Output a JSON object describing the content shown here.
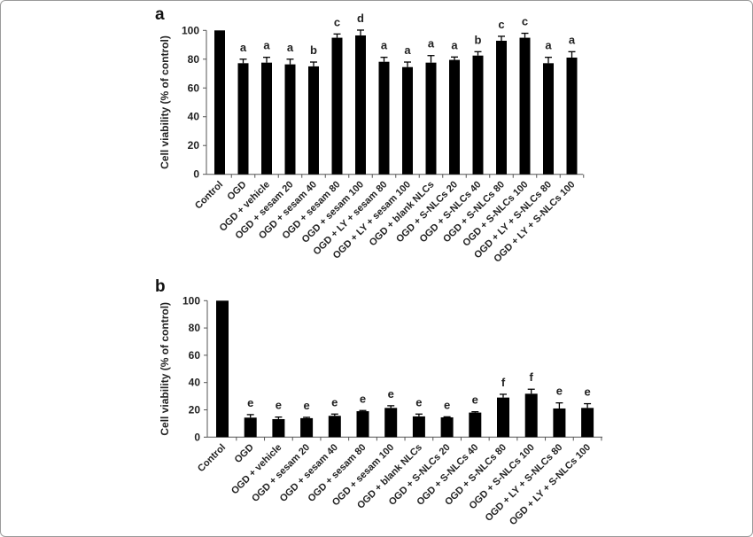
{
  "chart_data": [
    {
      "type": "bar",
      "panel_label": "a",
      "ylabel": "Cell viability (% of control)",
      "xlabel": "",
      "ylim": [
        0,
        100
      ],
      "yticks": [
        0,
        20,
        40,
        60,
        80,
        100
      ],
      "grid": false,
      "bar_color": "#000000",
      "categories": [
        "Control",
        "OGD",
        "OGD + vehicle",
        "OGD + sesam 20",
        "OGD + sesam 40",
        "OGD + sesam 80",
        "OGD + sesam 100",
        "OGD + LY + sesam 80",
        "OGD + LY + sesam 100",
        "OGD + blank NLCs",
        "OGD + S-NLCs 20",
        "OGD + S-NLCs 40",
        "OGD + S-NLCs 80",
        "OGD + S-NLCs 100",
        "OGD + LY + S-NLCs 80",
        "OGD + LY + S-NLCs 100"
      ],
      "values": [
        100,
        77.2,
        77.6,
        76.4,
        75.0,
        94.9,
        96.5,
        78.2,
        74.5,
        77.6,
        79.5,
        82.5,
        92.8,
        94.9,
        77.2,
        81.1
      ],
      "error_upper": [
        0,
        2.8,
        3.7,
        3.6,
        3.0,
        2.6,
        3.7,
        3.1,
        3.5,
        4.9,
        2.0,
        2.7,
        3.1,
        3.1,
        4.1,
        4.1
      ],
      "significance_letters": [
        "",
        "a",
        "a",
        "a",
        "b",
        "c",
        "d",
        "a",
        "a",
        "a",
        "a",
        "b",
        "c",
        "c",
        "a",
        "a"
      ]
    },
    {
      "type": "bar",
      "panel_label": "b",
      "ylabel": "Cell viability (% of control)",
      "xlabel": "",
      "ylim": [
        0,
        100
      ],
      "yticks": [
        0,
        20,
        40,
        60,
        80,
        100
      ],
      "grid": false,
      "bar_color": "#000000",
      "categories": [
        "Control",
        "OGD",
        "OGD + vehicle",
        "OGD + sesam 20",
        "OGD + sesam 40",
        "OGD + sesam 80",
        "OGD + sesam 100",
        "OGD + blank NLCs",
        "OGD + S-NLCs 20",
        "OGD + S-NLCs 40",
        "OGD + S-NLCs 80",
        "OGD + S-NLCs 100",
        "OGD + LY + S-NLCs 80",
        "OGD + LY + S-NLCs 100"
      ],
      "values": [
        100,
        14.3,
        13.2,
        13.9,
        15.6,
        19.0,
        21.4,
        15.2,
        14.5,
        18.0,
        29.0,
        31.8,
        21.0,
        21.4
      ],
      "error_upper": [
        0,
        2.2,
        1.5,
        0.6,
        1.3,
        0.5,
        1.6,
        1.7,
        0.4,
        0.6,
        2.4,
        3.3,
        4.1,
        3.1
      ],
      "significance_letters": [
        "",
        "e",
        "e",
        "e",
        "e",
        "e",
        "e",
        "e",
        "e",
        "e",
        "f",
        "f",
        "e",
        "e"
      ]
    }
  ]
}
